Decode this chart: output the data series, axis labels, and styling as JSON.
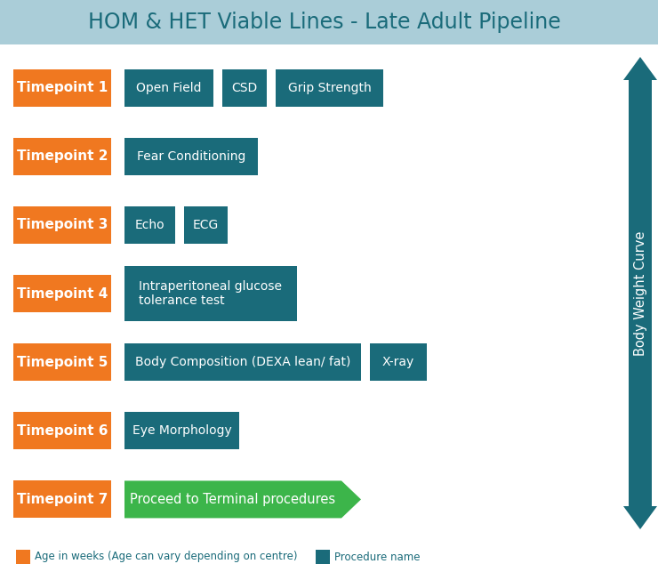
{
  "title": "HOM & HET Viable Lines - Late Adult Pipeline",
  "title_color": "#1a6b7a",
  "title_bg": "#aacdd8",
  "background_color": "#ffffff",
  "orange_color": "#f07820",
  "teal_color": "#1a6b7a",
  "green_color": "#3cb54a",
  "timepoints": [
    {
      "label": "Timepoint 1",
      "procedures": [
        "Open Field",
        "CSD",
        "Grip Strength"
      ],
      "terminal": false
    },
    {
      "label": "Timepoint 2",
      "procedures": [
        "Fear Conditioning"
      ],
      "terminal": false
    },
    {
      "label": "Timepoint 3",
      "procedures": [
        "Echo",
        "ECG"
      ],
      "terminal": false
    },
    {
      "label": "Timepoint 4",
      "procedures": [
        "Intraperitoneal glucose\ntolerance test"
      ],
      "terminal": false
    },
    {
      "label": "Timepoint 5",
      "procedures": [
        "Body Composition (DEXA lean/ fat)",
        "X-ray"
      ],
      "terminal": false
    },
    {
      "label": "Timepoint 6",
      "procedures": [
        "Eye Morphology"
      ],
      "terminal": false
    },
    {
      "label": "Timepoint 7",
      "procedures": [
        "Proceed to Terminal procedures"
      ],
      "terminal": true
    }
  ],
  "legend_orange_label": "Age in weeks (Age can vary depending on centre)",
  "legend_teal_label": "Procedure name",
  "arrow_label": "Body Weight Curve",
  "fig_width": 7.4,
  "fig_height": 6.52,
  "dpi": 100
}
